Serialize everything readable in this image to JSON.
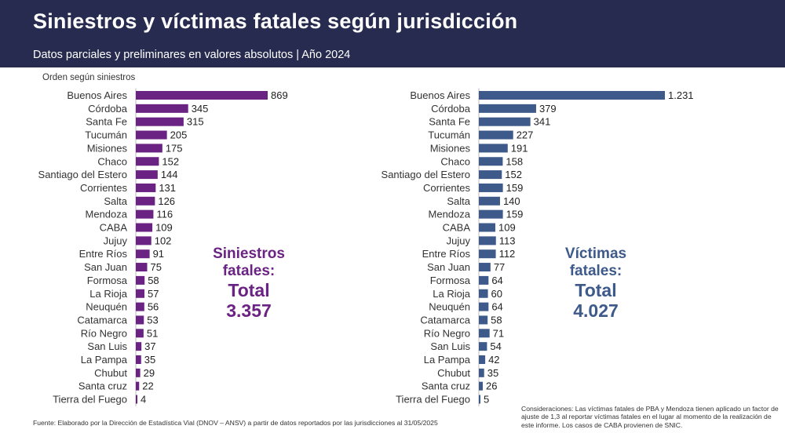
{
  "title": "Siniestros y víctimas fatales según jurisdicción",
  "subtitle": "Datos parciales y preliminares en valores absolutos | Año 2024",
  "order_label": "Orden según siniestros",
  "left_total": {
    "line1": "Siniestros",
    "line2": "fatales:",
    "line3": "Total",
    "value": "3.357"
  },
  "right_total": {
    "line1": "Víctimas",
    "line2": "fatales:",
    "line3": "Total",
    "value": "4.027"
  },
  "source": "Fuente: Elaborado por la Dirección de Estadística Vial (DNOV – ANSV) a partir de datos reportados por las jurisdicciones al 31/05/2025",
  "notes": "Consideraciones: Las víctimas fatales de PBA y Mendoza tienen aplicado un factor de ajuste de 1,3 al reportar víctimas fatales en el lugar al momento de la realización de este informe. Los casos de CABA provienen de SNIC.",
  "colors": {
    "header": "#262b4f",
    "left_bar": "#6a2382",
    "right_bar": "#3d5a8a"
  },
  "chart_data": [
    {
      "type": "bar",
      "orientation": "horizontal",
      "title": "Siniestros fatales",
      "categories": [
        "Buenos Aires",
        "Córdoba",
        "Santa Fe",
        "Tucumán",
        "Misiones",
        "Chaco",
        "Santiago del Estero",
        "Corrientes",
        "Salta",
        "Mendoza",
        "CABA",
        "Jujuy",
        "Entre Ríos",
        "San Juan",
        "Formosa",
        "La Rioja",
        "Neuquén",
        "Catamarca",
        "Río Negro",
        "San Luis",
        "La Pampa",
        "Chubut",
        "Santa cruz",
        "Tierra del Fuego"
      ],
      "values": [
        869,
        345,
        315,
        205,
        175,
        152,
        144,
        131,
        126,
        116,
        109,
        102,
        91,
        75,
        58,
        57,
        56,
        53,
        51,
        37,
        35,
        29,
        22,
        4
      ],
      "labels": [
        "869",
        "345",
        "315",
        "205",
        "175",
        "152",
        "144",
        "131",
        "126",
        "116",
        "109",
        "102",
        "91",
        "75",
        "58",
        "57",
        "56",
        "53",
        "51",
        "37",
        "35",
        "29",
        "22",
        "4"
      ],
      "xlim": [
        0,
        869
      ]
    },
    {
      "type": "bar",
      "orientation": "horizontal",
      "title": "Víctimas fatales",
      "categories": [
        "Buenos Aires",
        "Córdoba",
        "Santa Fe",
        "Tucumán",
        "Misiones",
        "Chaco",
        "Santiago del Estero",
        "Corrientes",
        "Salta",
        "Mendoza",
        "CABA",
        "Jujuy",
        "Entre Ríos",
        "San Juan",
        "Formosa",
        "La Rioja",
        "Neuquén",
        "Catamarca",
        "Río Negro",
        "San Luis",
        "La Pampa",
        "Chubut",
        "Santa cruz",
        "Tierra del Fuego"
      ],
      "values": [
        1231,
        379,
        341,
        227,
        191,
        158,
        152,
        159,
        140,
        159,
        109,
        113,
        112,
        77,
        64,
        60,
        64,
        58,
        71,
        54,
        42,
        35,
        26,
        5
      ],
      "labels": [
        "1.231",
        "379",
        "341",
        "227",
        "191",
        "158",
        "152",
        "159",
        "140",
        "159",
        "109",
        "113",
        "112",
        "77",
        "64",
        "60",
        "64",
        "58",
        "71",
        "54",
        "42",
        "35",
        "26",
        "5"
      ],
      "xlim": [
        0,
        1231
      ]
    }
  ]
}
